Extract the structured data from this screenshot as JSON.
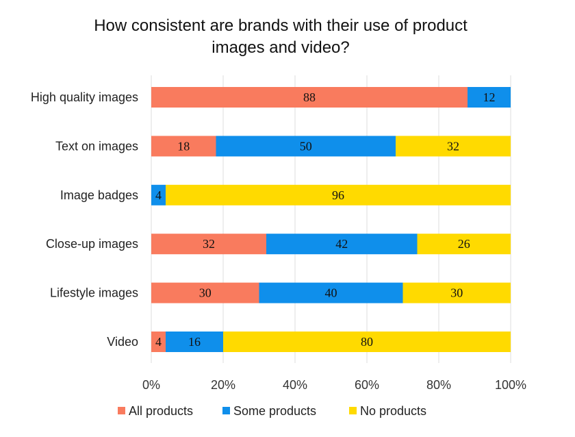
{
  "chart_data": {
    "type": "bar",
    "orientation": "horizontal",
    "stacked": true,
    "title_line1": "How consistent are brands with their use of product",
    "title_line2": "images and video?",
    "categories": [
      "High quality images",
      "Text on images",
      "Image badges",
      "Close-up images",
      "Lifestyle images",
      "Video"
    ],
    "series": [
      {
        "name": "All products",
        "color": "#F97B5E",
        "values": [
          88,
          18,
          0,
          32,
          30,
          4
        ]
      },
      {
        "name": "Some products",
        "color": "#0F8FEB",
        "values": [
          12,
          50,
          4,
          42,
          40,
          16
        ]
      },
      {
        "name": "No products",
        "color": "#FFDA00",
        "values": [
          0,
          32,
          96,
          26,
          30,
          80
        ]
      }
    ],
    "x_ticks": [
      "0%",
      "20%",
      "40%",
      "60%",
      "80%",
      "100%"
    ],
    "xlim": [
      0,
      100
    ],
    "grid": true,
    "legend_position": "bottom"
  }
}
